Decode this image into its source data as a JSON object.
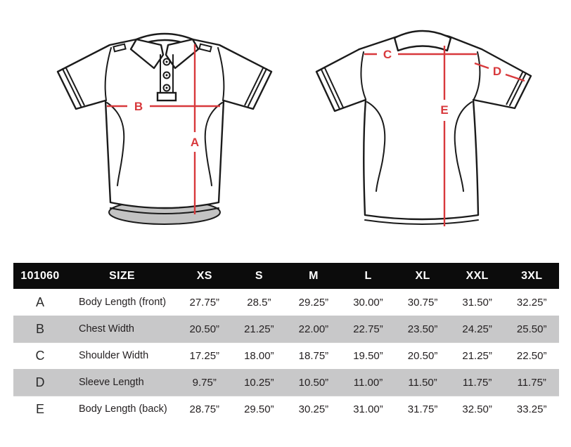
{
  "colors": {
    "accent": "#d8393c",
    "header_background": "#0c0c0c",
    "row_gray": "#c8c8c9",
    "line_ink": "#1b1b1b"
  },
  "diagram": {
    "front_view": "polo-shirt-front",
    "back_view": "polo-shirt-back",
    "labels": {
      "A": "A",
      "B": "B",
      "C": "C",
      "D": "D",
      "E": "E"
    }
  },
  "table": {
    "product_code": "101060",
    "size_label": "SIZE",
    "columns": [
      "XS",
      "S",
      "M",
      "L",
      "XL",
      "XXL",
      "3XL"
    ],
    "rows": [
      {
        "letter": "A",
        "label": "Body Length (front)",
        "values": [
          "27.75”",
          "28.5”",
          "29.25”",
          "30.00”",
          "30.75”",
          "31.50”",
          "32.25”"
        ]
      },
      {
        "letter": "B",
        "label": "Chest Width",
        "values": [
          "20.50”",
          "21.25”",
          "22.00”",
          "22.75”",
          "23.50”",
          "24.25”",
          "25.50”"
        ]
      },
      {
        "letter": "C",
        "label": "Shoulder Width",
        "values": [
          "17.25”",
          "18.00”",
          "18.75”",
          "19.50”",
          "20.50”",
          "21.25”",
          "22.50”"
        ]
      },
      {
        "letter": "D",
        "label": "Sleeve Length",
        "values": [
          "9.75”",
          "10.25”",
          "10.50”",
          "11.00”",
          "11.50”",
          "11.75”",
          "11.75”"
        ]
      },
      {
        "letter": "E",
        "label": "Body Length (back)",
        "values": [
          "28.75”",
          "29.50”",
          "30.25”",
          "31.00”",
          "31.75”",
          "32.50”",
          "33.25”"
        ]
      }
    ]
  }
}
